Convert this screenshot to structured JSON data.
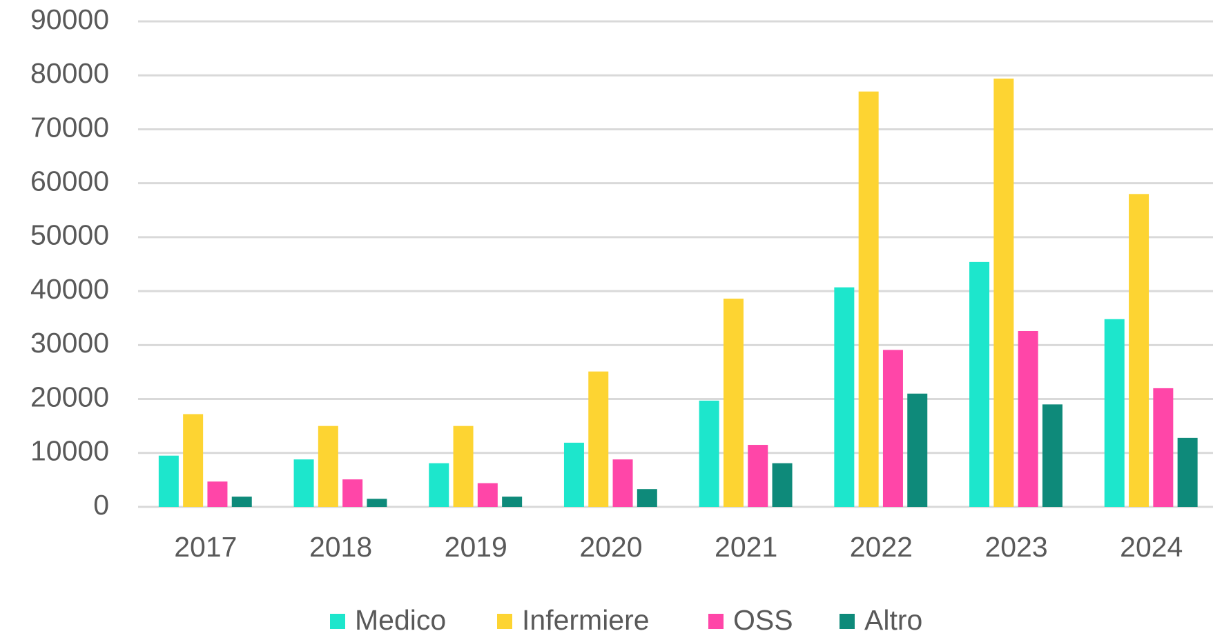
{
  "chart_data": {
    "type": "bar",
    "categories": [
      "2017",
      "2018",
      "2019",
      "2020",
      "2021",
      "2022",
      "2023",
      "2024"
    ],
    "series": [
      {
        "name": "Medico",
        "color": "#1de6cc",
        "values": [
          9500,
          8800,
          8100,
          11900,
          19700,
          40700,
          45400,
          34800
        ]
      },
      {
        "name": "Infermiere",
        "color": "#fdd432",
        "values": [
          17200,
          15000,
          15000,
          25100,
          38600,
          77000,
          79400,
          58000
        ]
      },
      {
        "name": "OSS",
        "color": "#ff46a8",
        "values": [
          4700,
          5100,
          4400,
          8800,
          11500,
          29100,
          32600,
          22000
        ]
      },
      {
        "name": "Altro",
        "color": "#0e8a7a",
        "values": [
          1900,
          1500,
          1900,
          3300,
          8100,
          21000,
          19000,
          12800
        ]
      }
    ],
    "ylim": [
      0,
      90000
    ],
    "yticks": [
      0,
      10000,
      20000,
      30000,
      40000,
      50000,
      60000,
      70000,
      80000,
      90000
    ],
    "grid": true,
    "legend": "bottom"
  }
}
